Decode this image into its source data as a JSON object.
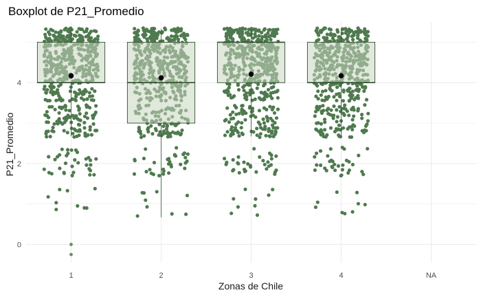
{
  "chart_data": {
    "type": "boxplot",
    "title": "Boxplot de P21_Promedio",
    "xlabel": "Zonas de Chile",
    "ylabel": "P21_Promedio",
    "categories": [
      "1",
      "2",
      "3",
      "4",
      "NA"
    ],
    "y_ticks": [
      0,
      2,
      4
    ],
    "ylim": [
      -0.45,
      5.5
    ],
    "grid": true,
    "colors": {
      "point": "#4f7a4f",
      "box_fill": "#c9d6bf",
      "box_stroke": "#2f4f2f",
      "mean": "#000000",
      "grid": "#ebebeb"
    },
    "boxes": [
      {
        "category": "1",
        "q1": 4.0,
        "median": 4.0,
        "q3": 5.0,
        "whisker_low": 2.67,
        "whisker_high": 5.33,
        "mean": 4.17,
        "outliers": [
          0.0,
          -0.25
        ]
      },
      {
        "category": "2",
        "q1": 3.0,
        "median": 4.0,
        "q3": 5.0,
        "whisker_low": 0.67,
        "whisker_high": 5.33,
        "mean": 4.12,
        "outliers": []
      },
      {
        "category": "3",
        "q1": 4.0,
        "median": 5.0,
        "q3": 5.0,
        "whisker_low": 2.67,
        "whisker_high": 5.33,
        "mean": 4.21,
        "outliers": []
      },
      {
        "category": "4",
        "q1": 4.0,
        "median": 4.0,
        "q3": 5.0,
        "whisker_low": 2.67,
        "whisker_high": 5.33,
        "mean": 4.17,
        "outliers": []
      }
    ],
    "jitter_bands": [
      {
        "y_min": 4.35,
        "y_max": 5.35,
        "density": 1.0
      },
      {
        "y_min": 3.95,
        "y_max": 4.35,
        "density": 0.85
      },
      {
        "y_min": 3.55,
        "y_max": 3.95,
        "density": 0.55
      },
      {
        "y_min": 2.65,
        "y_max": 3.45,
        "density": 0.45
      },
      {
        "y_min": 1.7,
        "y_max": 2.4,
        "density": 0.18
      },
      {
        "y_min": 0.7,
        "y_max": 1.4,
        "density": 0.05
      }
    ]
  }
}
